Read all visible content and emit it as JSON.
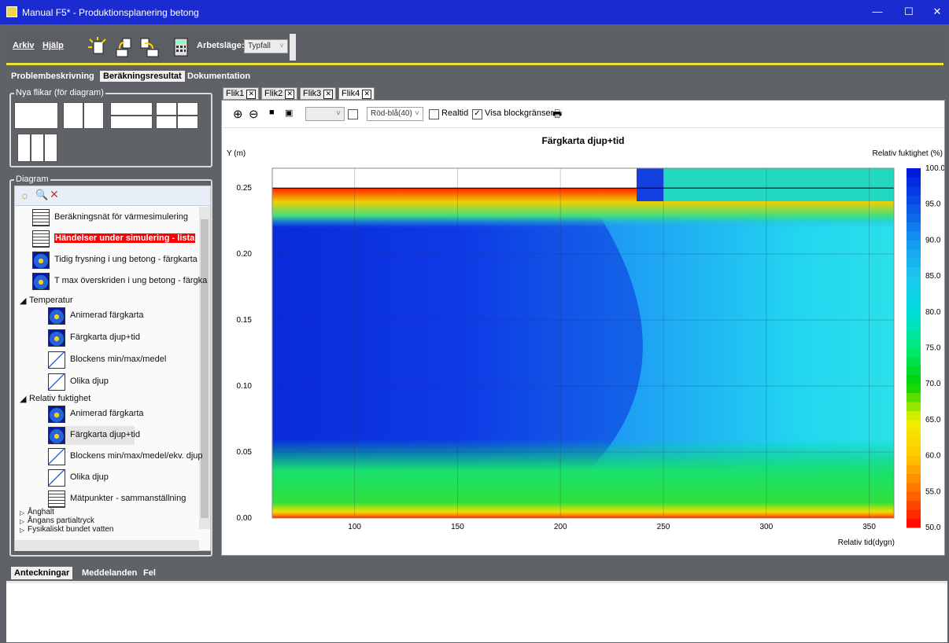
{
  "window": {
    "title": "Manual F5* - Produktionsplanering betong",
    "minimize": "—",
    "maximize": "☐",
    "close": "✕"
  },
  "toolbar": {
    "menu_arkiv": "Arkiv",
    "menu_hjalp": "Hjälp",
    "mode_label": "Arbetsläge:",
    "mode_value": "Typfall"
  },
  "main_tabs": [
    "Problembeskrivning",
    "Beräkningsresultat",
    "Dokumentation"
  ],
  "new_tabs": {
    "title": "Nya flikar (för diagram)"
  },
  "diagram": {
    "title": "Diagram",
    "items_top": [
      "Beräkningsnät för värmesimulering",
      "Händelser under simulering - lista",
      "Tidig frysning i ung betong - färgkarta",
      "T max överskriden i ung betong - färgka"
    ],
    "group_temperatur": "Temperatur",
    "temp_items": [
      "Animerad färgkarta",
      "Färgkarta djup+tid",
      "Blockens min/max/medel",
      "Olika djup"
    ],
    "group_fukt": "Relativ fuktighet",
    "fukt_items": [
      "Animerad färgkarta",
      "Färgkarta djup+tid",
      "Blockens min/max/medel/ekv. djup",
      "Olika djup",
      "Mätpunkter - sammanställning"
    ],
    "collapsed": [
      "Ånghalt",
      "Ångans partialtryck",
      "Fysikaliskt bundet vatten"
    ],
    "highlight_color": "#ff0000"
  },
  "chart_tabs": [
    "Flik1",
    "Flik2",
    "Flik3",
    "Flik4"
  ],
  "chart_toolbar": {
    "palette": "Röd-blå(40)",
    "realtid": "Realtid",
    "visa_block": "Visa blockgränser"
  },
  "chart_data": {
    "type": "heatmap",
    "title": "Färgkarta djup+tid",
    "ylabel": "Y (m)",
    "xlabel": "Relativ tid(dygn)",
    "xlim": [
      60,
      362
    ],
    "ylim": [
      0,
      0.265
    ],
    "xticks": [
      "100",
      "150",
      "200",
      "250",
      "300",
      "350"
    ],
    "yticks": [
      "0.00",
      "0.05",
      "0.10",
      "0.15",
      "0.20",
      "0.25"
    ],
    "grid": true,
    "colorbar": {
      "label": "Relativ fuktighet (%)",
      "range": [
        50,
        100
      ],
      "ticks": [
        "100.0",
        "95.0",
        "90.0",
        "85.0",
        "80.0",
        "75.0",
        "70.0",
        "65.0",
        "60.0",
        "55.0",
        "50.0"
      ]
    }
  },
  "bottom_tabs": [
    "Anteckningar",
    "Meddelanden",
    "Fel"
  ]
}
